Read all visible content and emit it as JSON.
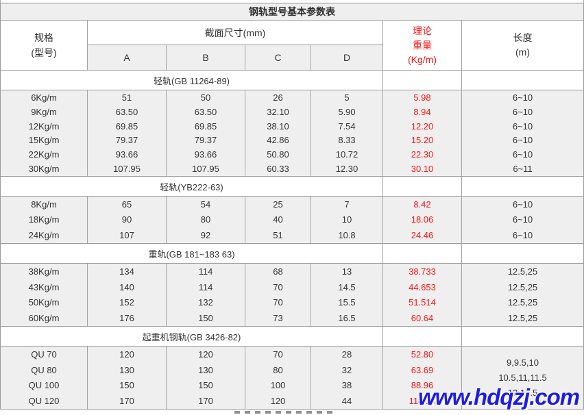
{
  "title": "钢轨型号基本参数表",
  "header": {
    "spec_line1": "规格",
    "spec_line2": "(型号)",
    "dimensions": "截面尺寸(mm)",
    "col_a": "A",
    "col_b": "B",
    "col_c": "C",
    "col_d": "D",
    "weight_line1": "理论",
    "weight_line2": "重量",
    "weight_line3": "(Kg/m)",
    "length_line1": "长度",
    "length_line2": "(m)"
  },
  "sections": [
    {
      "name": "轻轨(GB 11264-89)",
      "rows": [
        [
          "6Kg/m",
          "51",
          "50",
          "26",
          "5",
          "5.98",
          "6~10"
        ],
        [
          "9Kg/m",
          "63.50",
          "63.50",
          "32.10",
          "5.90",
          "8.94",
          "6~10"
        ],
        [
          "12Kg/m",
          "69.85",
          "69.85",
          "38.10",
          "7.54",
          "12.20",
          "6~10"
        ],
        [
          "15Kg/m",
          "79.37",
          "79.37",
          "42.86",
          "8.33",
          "15.20",
          "6~10"
        ],
        [
          "22Kg/m",
          "93.66",
          "93.66",
          "50.80",
          "10.72",
          "22.30",
          "6~10"
        ],
        [
          "30Kg/m",
          "107.95",
          "107.95",
          "60.33",
          "12.30",
          "30.10",
          "6~11"
        ]
      ]
    },
    {
      "name": "轻轨(YB222-63)",
      "rows": [
        [
          "8Kg/m",
          "65",
          "54",
          "25",
          "7",
          "8.42",
          "6~10"
        ],
        [
          "18Kg/m",
          "90",
          "80",
          "40",
          "10",
          "18.06",
          "6~10"
        ],
        [
          "24Kg/m",
          "107",
          "92",
          "51",
          "10.8",
          "24.46",
          "6~10"
        ]
      ]
    },
    {
      "name": "重轨(GB 181~183 63)",
      "rows": [
        [
          "38Kg/m",
          "134",
          "114",
          "68",
          "13",
          "38.733",
          "12.5,25"
        ],
        [
          "43Kg/m",
          "140",
          "114",
          "70",
          "14.5",
          "44.653",
          "12.5,25"
        ],
        [
          "50Kg/m",
          "152",
          "132",
          "70",
          "15.5",
          "51.514",
          "12.5,25"
        ],
        [
          "60Kg/m",
          "176",
          "150",
          "73",
          "16.5",
          "60.64",
          "12.5,25"
        ]
      ]
    },
    {
      "name": "起重机钢轨(GB 3426-82)",
      "rows": [
        [
          "QU 70",
          "120",
          "120",
          "70",
          "28",
          "52.80"
        ],
        [
          "QU 80",
          "130",
          "130",
          "80",
          "32",
          "63.69"
        ],
        [
          "QU 100",
          "150",
          "150",
          "100",
          "38",
          "88.96"
        ],
        [
          "QU 120",
          "170",
          "170",
          "120",
          "44",
          "118.10"
        ]
      ],
      "length_lines": [
        "9,9.5,10",
        "10.5,11,11.5",
        "12,12.5"
      ]
    }
  ],
  "watermark": "www.hdqzj.com",
  "colors": {
    "accent_red": "#fe1414",
    "watermark_blue": "#1c1cea",
    "row_background": "#efefef",
    "border_gray": "#9a9a9a"
  }
}
